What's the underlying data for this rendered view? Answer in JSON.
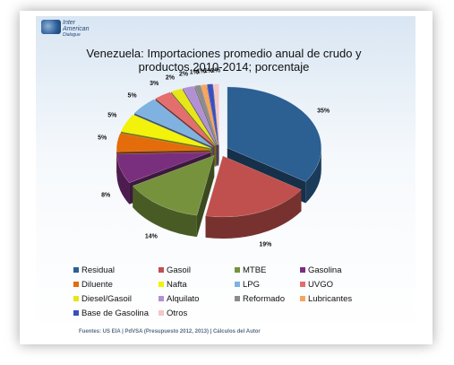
{
  "logo": {
    "line1": "Inter",
    "line2": "American",
    "line3": "Dialogue"
  },
  "chart_data": {
    "type": "pie",
    "title_line1": "Venezuela: Importaciones promedio anual de crudo y",
    "title_line2": "productos  2010-2014; porcentaje",
    "slices": [
      {
        "name": "Residual",
        "value": 35,
        "label": "35%",
        "color": "#2c5f92"
      },
      {
        "name": "Gasoil",
        "value": 19,
        "label": "19%",
        "color": "#c0504d"
      },
      {
        "name": "MTBE",
        "value": 14,
        "label": "14%",
        "color": "#76923c"
      },
      {
        "name": "Gasolina",
        "value": 8,
        "label": "8%",
        "color": "#7a2f7e"
      },
      {
        "name": "Diluente",
        "value": 5,
        "label": "5%",
        "color": "#e46c0a"
      },
      {
        "name": "Nafta",
        "value": 5,
        "label": "5%",
        "color": "#f2f20a"
      },
      {
        "name": "LPG",
        "value": 5,
        "label": "5%",
        "color": "#7fb2e0"
      },
      {
        "name": "UVGO",
        "value": 3,
        "label": "3%",
        "color": "#e46d6d"
      },
      {
        "name": "Diesel/Gasoil",
        "value": 2,
        "label": "2%",
        "color": "#e6e619"
      },
      {
        "name": "Alquilato",
        "value": 2,
        "label": "2%",
        "color": "#b191d3"
      },
      {
        "name": "Reformado",
        "value": 1,
        "label": "1%",
        "color": "#8c8c8c"
      },
      {
        "name": "Lubricantes",
        "value": 1,
        "label": "1%",
        "color": "#f7a55e"
      },
      {
        "name": "Base de Gasolina",
        "value": 1,
        "label": "1%",
        "color": "#3a4fbf"
      },
      {
        "name": "Otros",
        "value": 1,
        "label": "1%",
        "color": "#f4c6c6"
      }
    ],
    "legend_placement": "bottom"
  },
  "source": "Fuentes: US EIA |  PdVSA (Presupuesto 2012, 2013) | Cálculos del Autor"
}
